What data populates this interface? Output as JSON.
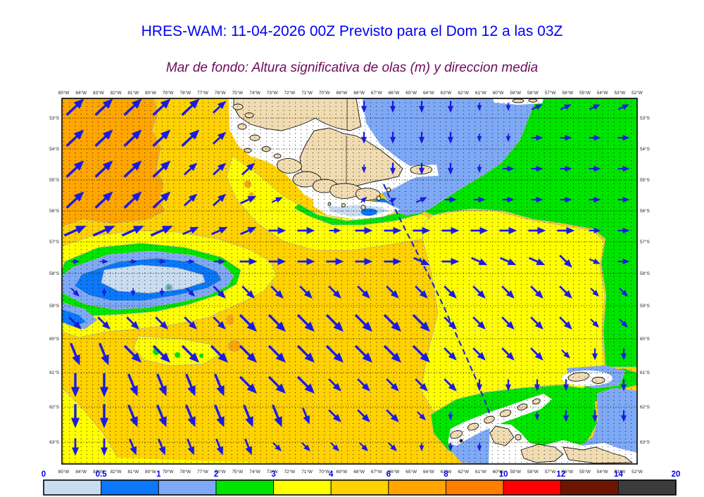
{
  "header": {
    "title": "HRES-WAM: 11-04-2026 00Z Previsto para el Dom 12 a las 03Z",
    "subtitle": "Mar de fondo: Altura significativa de olas (m) y direccion media"
  },
  "palette": {
    "title": "#0000f2",
    "subtitle": "#6e0a5e",
    "land": "#f1dcb2",
    "sea_white": "#ffffff",
    "h0": "#c9ddf2",
    "h05": "#0a78f8",
    "h1": "#7ea9f6",
    "h2": "#00e400",
    "h3": "#ffff00",
    "h4": "#ffd200",
    "h6": "#ffa600",
    "h8": "#ff7e00",
    "h10": "#ff0000",
    "h12": "#6e1500",
    "h14": "#3c3c3c",
    "arrow": "#1b1be0",
    "grid": "#000000",
    "track": "#2130cc",
    "axis_label": "#1a1a1a",
    "cb_label": "#0000ee"
  },
  "axes": {
    "lon_labels": [
      "85°W",
      "84°W",
      "83°W",
      "82°W",
      "81°W",
      "80°W",
      "79°W",
      "78°W",
      "77°W",
      "76°W",
      "75°W",
      "74°W",
      "73°W",
      "72°W",
      "71°W",
      "70°W",
      "69°W",
      "68°W",
      "67°W",
      "66°W",
      "65°W",
      "64°W",
      "63°W",
      "62°W",
      "61°W",
      "60°W",
      "59°W",
      "58°W",
      "57°W",
      "56°W",
      "55°W",
      "54°W",
      "53°W",
      "52°W"
    ],
    "lat_labels": [
      "53°S",
      "54°S",
      "55°S",
      "56°S",
      "57°S",
      "58°S",
      "59°S",
      "60°S",
      "61°S",
      "62°S",
      "63°S"
    ]
  },
  "colorbar": {
    "tick_labels": [
      "0",
      "0.5",
      "1",
      "2",
      "3",
      "4",
      "6",
      "8",
      "10",
      "12",
      "14",
      "20"
    ],
    "colors": [
      "h0",
      "h05",
      "h1",
      "h2",
      "h3",
      "h4",
      "h6",
      "h8",
      "h10",
      "h12",
      "h14"
    ]
  },
  "arrows": {
    "dirs": {
      "N": 90,
      "NE": 43,
      "ENE": 24,
      "E": 0,
      "ESE": -24,
      "SE": -45,
      "SSE": -68,
      "S": -90
    },
    "sizes": {
      "1": [
        12,
        1.6
      ],
      "2": [
        17,
        2.2
      ],
      "3": [
        25,
        2.8
      ],
      "4": [
        34,
        3.4
      ]
    },
    "rows": [
      "NE4,NE4,NE4,NE4,NE4,NE3,,,,,S2,S2,S2,S2,S1,S1,ENE2,ENE2,ENE2,ENE2",
      "NE4,NE4,NE4,NE4,NE4,NE3,,,,,S2,S2,S2,S2,S1,S1,E2,E2,E2,E2",
      "NE4,NE4,NE4,NE4,NE3,NE3,NE3,,,,S1,S2,S2,S2,S1,E2,E2,E2,E2,E2",
      "NE4,NE4,NE4,NE4,NE3,NE3,ENE3,ENE2,,,NE1,ENE1,ENE2,E2,E2,E2,E2,E2,E2,E2",
      "ENE4,ENE4,ENE4,ENE4,ENE3,ENE3,ENE3,E3,E3,E2,E3,E3,E3,E3,E3,E3,E3,E3,E2,E2",
      "E1,E1,E1,E1,E1,E2,E3,E3,E3,E3,E3,E3,ESE3,E3,ESE3,ESE3,ESE3,SE3,ESE2,E2",
      "SE2,S1,S1,S1,SE2,SE3,SE3,SE3,SE3,SE3,SE3,SE3,SE3,SE3,SE3,SE3,SE3,SE3,SE2,SE2",
      "SE3,SE3,SE3,SE3,SE3,SE3,SE4,SE4,SE4,SE4,SE4,SE4,SE4,SE3,SE3,SE3,SE3,SE3,SE2,SE2",
      "SSE4,SSE4,SE4,SE4,SE4,SE4,SE4,SE4,SE4,SE4,SE4,SE4,SE4,SE3,SE3,SE3,SE3,SE2,S2,S2",
      "S4,S4,SSE4,SSE4,SSE4,SSE4,SE4,SE4,SE4,SE3,SE3,SE3,SE3,SE3,S2,S2,S2,S2,,S2",
      "S4,S4,SSE4,SSE4,SSE4,SSE4,SSE4,SSE4,SSE3,SE3,SE3,SE3,SE2,S1,,,S1,S2,S2,S2",
      "S3,S3,SSE3,SSE3,SSE3,SSE3,SSE3,SE2,SE2,SE2,SE2,SE2,S1,S1,S1,,,,,"
    ]
  }
}
